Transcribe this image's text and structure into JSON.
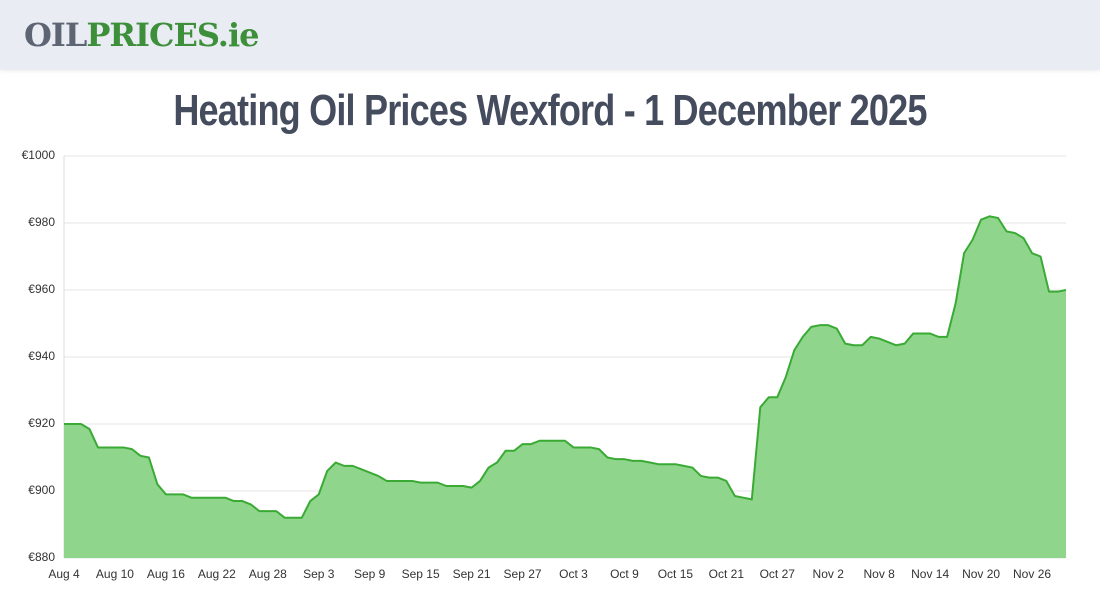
{
  "header": {
    "logo_1": "OIL",
    "logo_2": "PRICES.ie"
  },
  "chart_data": {
    "type": "area",
    "title": "Heating Oil Prices Wexford - 1 December 2025",
    "categories": [
      "Aug 4",
      null,
      null,
      null,
      null,
      null,
      "Aug 10",
      null,
      null,
      null,
      null,
      null,
      "Aug 16",
      null,
      null,
      null,
      null,
      null,
      "Aug 22",
      null,
      null,
      null,
      null,
      null,
      "Aug 28",
      null,
      null,
      null,
      null,
      null,
      "Sep 3",
      null,
      null,
      null,
      null,
      null,
      "Sep 9",
      null,
      null,
      null,
      null,
      null,
      "Sep 15",
      null,
      null,
      null,
      null,
      null,
      "Sep 21",
      null,
      null,
      null,
      null,
      null,
      "Sep 27",
      null,
      null,
      null,
      null,
      null,
      "Oct 3",
      null,
      null,
      null,
      null,
      null,
      "Oct 9",
      null,
      null,
      null,
      null,
      null,
      "Oct 15",
      null,
      null,
      null,
      null,
      null,
      "Oct 21",
      null,
      null,
      null,
      null,
      null,
      "Oct 27",
      null,
      null,
      null,
      null,
      null,
      "Nov 2",
      null,
      null,
      null,
      null,
      null,
      "Nov 8",
      null,
      null,
      null,
      null,
      null,
      "Nov 14",
      null,
      null,
      null,
      null,
      null,
      "Nov 20",
      null,
      null,
      null,
      null,
      null,
      "Nov 26",
      null,
      null,
      null,
      null
    ],
    "values": [
      920,
      920,
      920,
      918.5,
      913,
      913,
      913,
      913,
      912.5,
      910.5,
      910,
      902,
      899,
      899,
      899,
      898,
      898,
      898,
      898,
      898,
      897,
      897,
      896,
      894,
      894,
      894,
      892,
      892,
      892,
      897,
      899,
      906,
      908.5,
      907.5,
      907.5,
      906.5,
      905.5,
      904.5,
      903,
      903,
      903,
      903,
      902.5,
      902.5,
      902.5,
      901.5,
      901.5,
      901.5,
      901,
      903,
      907,
      908.5,
      912,
      912,
      914,
      914,
      915,
      915,
      915,
      915,
      913,
      913,
      913,
      912.5,
      910,
      909.5,
      909.5,
      909,
      909,
      908.5,
      908,
      908,
      908,
      907.5,
      907,
      904.5,
      904,
      904,
      903,
      898.5,
      898,
      897.5,
      925,
      928,
      928,
      934,
      942,
      946,
      949,
      949.5,
      949.5,
      948.5,
      944,
      943.5,
      943.5,
      946,
      945.5,
      944.5,
      943.5,
      944,
      947,
      947,
      947,
      946,
      946,
      956,
      971,
      975,
      981,
      982,
      981.5,
      977.5,
      977,
      975.5,
      971,
      970,
      959.5,
      959.5,
      960
    ],
    "color": "#3aaa35",
    "fill": "#8fd68c",
    "ylim": [
      880,
      1000
    ],
    "yticks": [
      {
        "value": 880,
        "label": "€880"
      },
      {
        "value": 900,
        "label": "€900"
      },
      {
        "value": 920,
        "label": "€920"
      },
      {
        "value": 940,
        "label": "€940"
      },
      {
        "value": 960,
        "label": "€960"
      },
      {
        "value": 980,
        "label": "€980"
      },
      {
        "value": 1000,
        "label": "€1000"
      }
    ],
    "grid": true
  }
}
